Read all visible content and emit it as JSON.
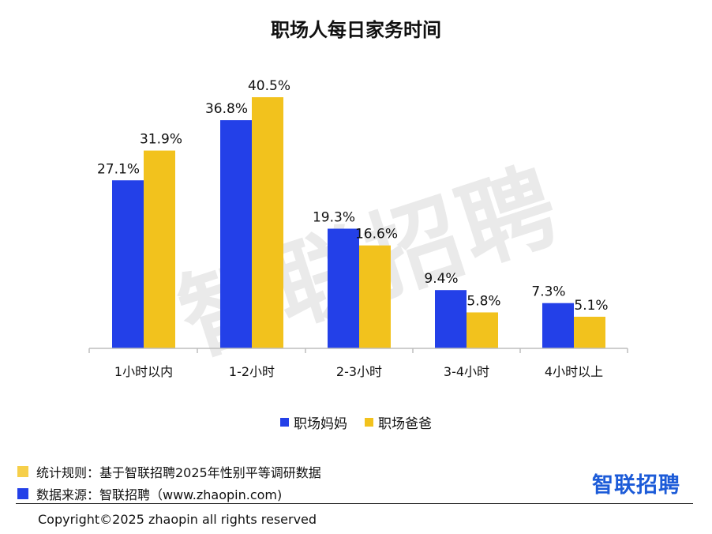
{
  "colors": {
    "mom": "#2340e8",
    "dad": "#f2c21d",
    "note_rule": "#f6cf4a",
    "note_source": "#2340e8",
    "brand": "#1c5bd8"
  },
  "watermark": "智联招聘",
  "chart_data": {
    "type": "bar",
    "title": "职场人每日家务时间",
    "categories": [
      "1小时以内",
      "1-2小时",
      "2-3小时",
      "3-4小时",
      "4小时以上"
    ],
    "series": [
      {
        "name": "职场妈妈",
        "values": [
          27.1,
          36.8,
          19.3,
          9.4,
          7.3
        ],
        "labels": [
          "27.1%",
          "36.8%",
          "19.3%",
          "9.4%",
          "7.3%"
        ]
      },
      {
        "name": "职场爸爸",
        "values": [
          31.9,
          40.5,
          16.6,
          5.8,
          5.1
        ],
        "labels": [
          "31.9%",
          "40.5%",
          "16.6%",
          "5.8%",
          "5.1%"
        ]
      }
    ],
    "xlabel": "",
    "ylabel": "",
    "grid": false,
    "legend": "bottom-center"
  },
  "notes": {
    "rule": "统计规则：基于智联招聘2025年性别平等调研数据",
    "source": "数据来源：智联招聘（www.zhaopin.com)"
  },
  "brand": "智联招聘",
  "copyright": "Copyright©2025 zhaopin all rights reserved"
}
